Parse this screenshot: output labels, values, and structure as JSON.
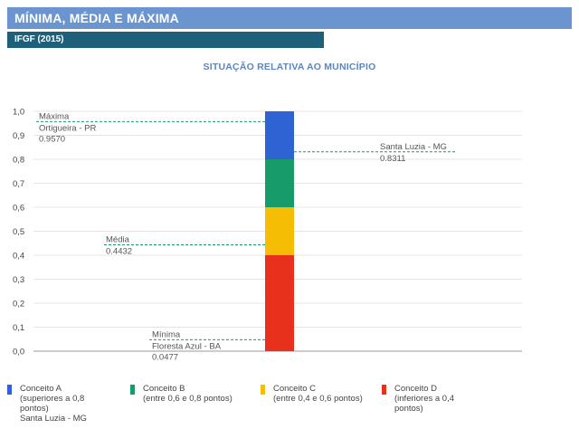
{
  "header": {
    "title": "MÍNIMA, MÉDIA E MÁXIMA",
    "subtitle": "IFGF (2015)"
  },
  "chart_data": {
    "type": "bar",
    "title": "SITUAÇÃO RELATIVA AO MUNICÍPIO",
    "ylim": [
      0,
      1
    ],
    "ytick_labels": [
      "1,0",
      "0,9",
      "0,8",
      "0,7",
      "0,6",
      "0,5",
      "0,4",
      "0,3",
      "0,2",
      "0,1",
      "0,0"
    ],
    "segments": [
      {
        "name": "Conceito D",
        "from": 0.0,
        "to": 0.4,
        "color": "#e8311c"
      },
      {
        "name": "Conceito C",
        "from": 0.4,
        "to": 0.6,
        "color": "#f6bd05"
      },
      {
        "name": "Conceito B",
        "from": 0.6,
        "to": 0.8,
        "color": "#179b6b"
      },
      {
        "name": "Conceito A",
        "from": 0.8,
        "to": 1.0,
        "color": "#2f63d4"
      }
    ],
    "annotations": [
      {
        "label": "Máxima",
        "sublabel": "Ortigueira - PR",
        "value_text": "0.9570",
        "value": 0.957,
        "side": "left"
      },
      {
        "label": "Santa Luzia - MG",
        "sublabel": "",
        "value_text": "0.8311",
        "value": 0.8311,
        "side": "right"
      },
      {
        "label": "Média",
        "sublabel": "",
        "value_text": "0.4432",
        "value": 0.4432,
        "side": "left"
      },
      {
        "label": "Mínima",
        "sublabel": "Floresta Azul - BA",
        "value_text": "0.0477",
        "value": 0.0477,
        "side": "left"
      }
    ]
  },
  "legend": [
    {
      "name": "Conceito A",
      "color": "#2f63d4",
      "lines": [
        "(superiores a 0,8",
        "pontos)",
        "Santa Luzia - MG"
      ]
    },
    {
      "name": "Conceito B",
      "color": "#179b6b",
      "lines": [
        "(entre 0,6 e 0,8 pontos)"
      ]
    },
    {
      "name": "Conceito C",
      "color": "#f6bd05",
      "lines": [
        "(entre 0,4 e 0,6 pontos)"
      ]
    },
    {
      "name": "Conceito D",
      "color": "#e8311c",
      "lines": [
        "(inferiores a 0,4",
        "pontos)"
      ]
    }
  ]
}
